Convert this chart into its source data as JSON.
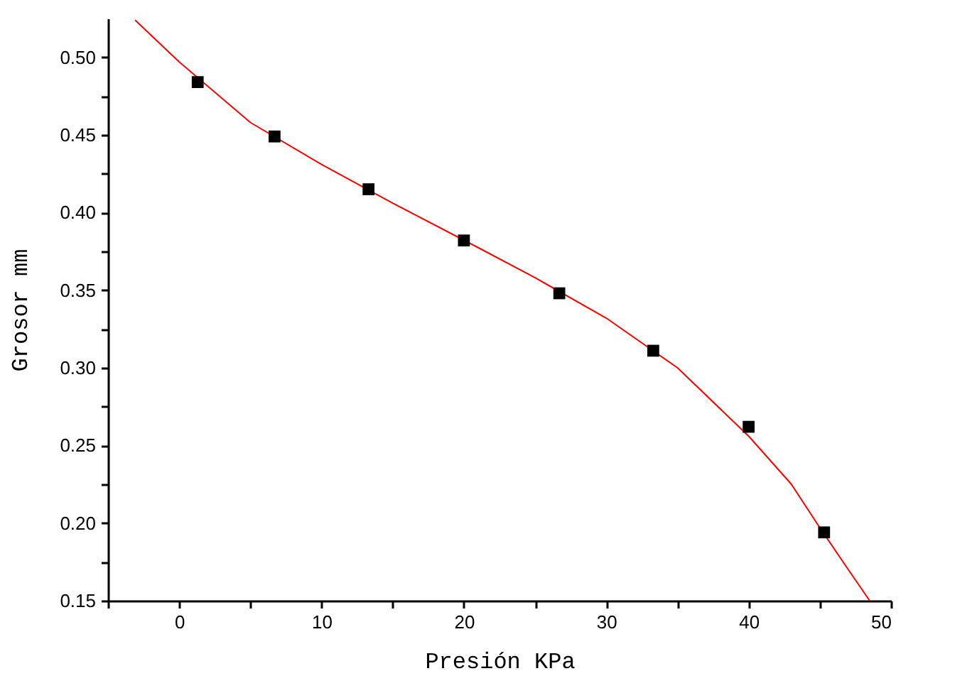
{
  "chart_data": {
    "type": "scatter",
    "xlabel": "Presión KPa",
    "ylabel": "Grosor mm",
    "xlim": [
      -5,
      50
    ],
    "ylim": [
      0.15,
      0.525
    ],
    "xticks": [
      {
        "value": -5,
        "label": null
      },
      0,
      {
        "value": 5,
        "label": null
      },
      10,
      {
        "value": 15,
        "label": null
      },
      20,
      {
        "value": 25,
        "label": null
      },
      30,
      {
        "value": 35,
        "label": null
      },
      40,
      {
        "value": 45,
        "label": null
      },
      50
    ],
    "yticks": [
      {
        "value": 0.15,
        "label": "0.15"
      },
      {
        "value": 0.175,
        "label": null
      },
      {
        "value": 0.2,
        "label": "0.20"
      },
      {
        "value": 0.225,
        "label": null
      },
      {
        "value": 0.25,
        "label": "0.25"
      },
      {
        "value": 0.275,
        "label": null
      },
      {
        "value": 0.3,
        "label": "0.30"
      },
      {
        "value": 0.325,
        "label": null
      },
      {
        "value": 0.35,
        "label": "0.35"
      },
      {
        "value": 0.375,
        "label": null
      },
      {
        "value": 0.4,
        "label": "0.40"
      },
      {
        "value": 0.425,
        "label": null
      },
      {
        "value": 0.45,
        "label": "0.45"
      },
      {
        "value": 0.475,
        "label": null
      },
      {
        "value": 0.5,
        "label": "0.50"
      }
    ],
    "grid": false,
    "series": [
      {
        "color": "#000000",
        "marker": "square",
        "x": [
          1.3,
          6.7,
          13.3,
          20,
          26.7,
          33.3,
          40,
          45.3
        ],
        "values": [
          0.484,
          0.449,
          0.415,
          0.382,
          0.348,
          0.311,
          0.262,
          0.194
        ]
      },
      {
        "type": "line",
        "color": "#ff0000",
        "marker": "none",
        "line_style": "solid",
        "x": [
          -3.1,
          0,
          5,
          10,
          15,
          21.5,
          25,
          30,
          35,
          40,
          43,
          45,
          47,
          48.5
        ],
        "values": [
          0.524,
          0.497,
          0.458,
          0.431,
          0.406,
          0.375,
          0.358,
          0.332,
          0.3,
          0.256,
          0.225,
          0.197,
          0.17,
          0.15
        ]
      }
    ]
  }
}
